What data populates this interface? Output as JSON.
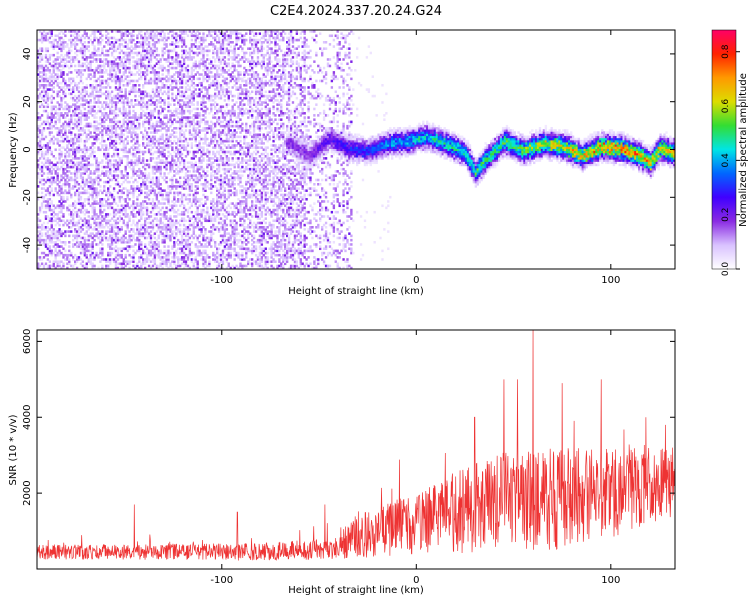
{
  "title": "C2E4.2024.337.20.24.G24",
  "chart_data": [
    {
      "type": "heatmap",
      "xlabel": "Height of straight line (km)",
      "ylabel": "Frequency (Hz)",
      "xlim": [
        -195,
        133
      ],
      "ylim": [
        -50,
        50
      ],
      "xticks": [
        -100,
        0,
        100
      ],
      "xtick_labels": [
        "-100",
        "0",
        "100"
      ],
      "yticks": [
        -40,
        -20,
        0,
        20,
        40
      ],
      "ytick_labels": [
        "-40",
        "-20",
        "0",
        "20",
        "40"
      ],
      "grid": false,
      "colorbar": {
        "label": "Normalized spectral amplitude",
        "range": [
          0,
          0.88
        ],
        "ticks": [
          0,
          0.2,
          0.4,
          0.6,
          0.8
        ],
        "tick_labels": [
          "0.0",
          "0.2",
          "0.4",
          "0.6",
          "0.8"
        ],
        "colormap": "rainbow (white/lavender → purple → blue → cyan → green → yellow → orange → red → pink)"
      },
      "colormap_colors": [
        "#ffffff",
        "#d9c2ff",
        "#8a2be2",
        "#4000ff",
        "#0066ff",
        "#00e5e5",
        "#33dd33",
        "#dddd00",
        "#ff9900",
        "#ff2200",
        "#ff0066"
      ],
      "regions": [
        {
          "x_range": [
            -195,
            -33
          ],
          "description": "broadband scattered purple noise across all frequencies"
        },
        {
          "x_range": [
            -33,
            133
          ],
          "description": "signal band centered near 0 Hz, mostly white outside band"
        }
      ],
      "signal_center_line": {
        "x": [
          -65,
          -55,
          -45,
          -35,
          -25,
          -15,
          -5,
          5,
          15,
          25,
          30,
          35,
          45,
          55,
          65,
          75,
          85,
          95,
          105,
          115,
          120,
          125,
          133
        ],
        "y": [
          2,
          -3,
          4,
          0,
          -1,
          2,
          3,
          5,
          2,
          -2,
          -10,
          -5,
          3,
          -1,
          2,
          1,
          -3,
          1,
          0,
          -3,
          -6,
          0,
          -2
        ]
      },
      "amplitude_trend": {
        "x": [
          -195,
          -60,
          -30,
          0,
          40,
          70,
          100,
          133
        ],
        "y": [
          0.12,
          0.18,
          0.3,
          0.42,
          0.5,
          0.6,
          0.7,
          0.65
        ]
      }
    },
    {
      "type": "line",
      "xlabel": "Height of straight line (km)",
      "ylabel": "SNR (10 * v/v)",
      "xlim": [
        -195,
        133
      ],
      "ylim": [
        0,
        6300
      ],
      "xticks": [
        -100,
        0,
        100
      ],
      "xtick_labels": [
        "-100",
        "0",
        "100"
      ],
      "yticks": [
        2000,
        4000,
        6000
      ],
      "ytick_labels": [
        "2000",
        "4000",
        "6000"
      ],
      "grid": false,
      "series": [
        {
          "color": "#ee3333",
          "envelope_x": [
            -195,
            -160,
            -120,
            -80,
            -40,
            -32,
            -20,
            0,
            20,
            40,
            60,
            80,
            100,
            120,
            133
          ],
          "envelope_baseline": [
            450,
            450,
            450,
            450,
            550,
            900,
            1000,
            1200,
            1500,
            1700,
            1800,
            1900,
            2000,
            2200,
            2300
          ],
          "envelope_spread": [
            200,
            200,
            220,
            230,
            300,
            600,
            700,
            800,
            1100,
            1300,
            1400,
            1300,
            1200,
            1000,
            900
          ],
          "peaks": [
            {
              "x": -145,
              "y": 1700
            },
            {
              "x": -92,
              "y": 1500
            },
            {
              "x": -47,
              "y": 1700
            },
            {
              "x": 30,
              "y": 4000
            },
            {
              "x": 45,
              "y": 5000
            },
            {
              "x": 52,
              "y": 5000
            },
            {
              "x": 60,
              "y": 6300
            },
            {
              "x": 75,
              "y": 4900
            },
            {
              "x": 95,
              "y": 5000
            },
            {
              "x": 118,
              "y": 4000
            },
            {
              "x": 128,
              "y": 3800
            }
          ]
        }
      ]
    }
  ]
}
